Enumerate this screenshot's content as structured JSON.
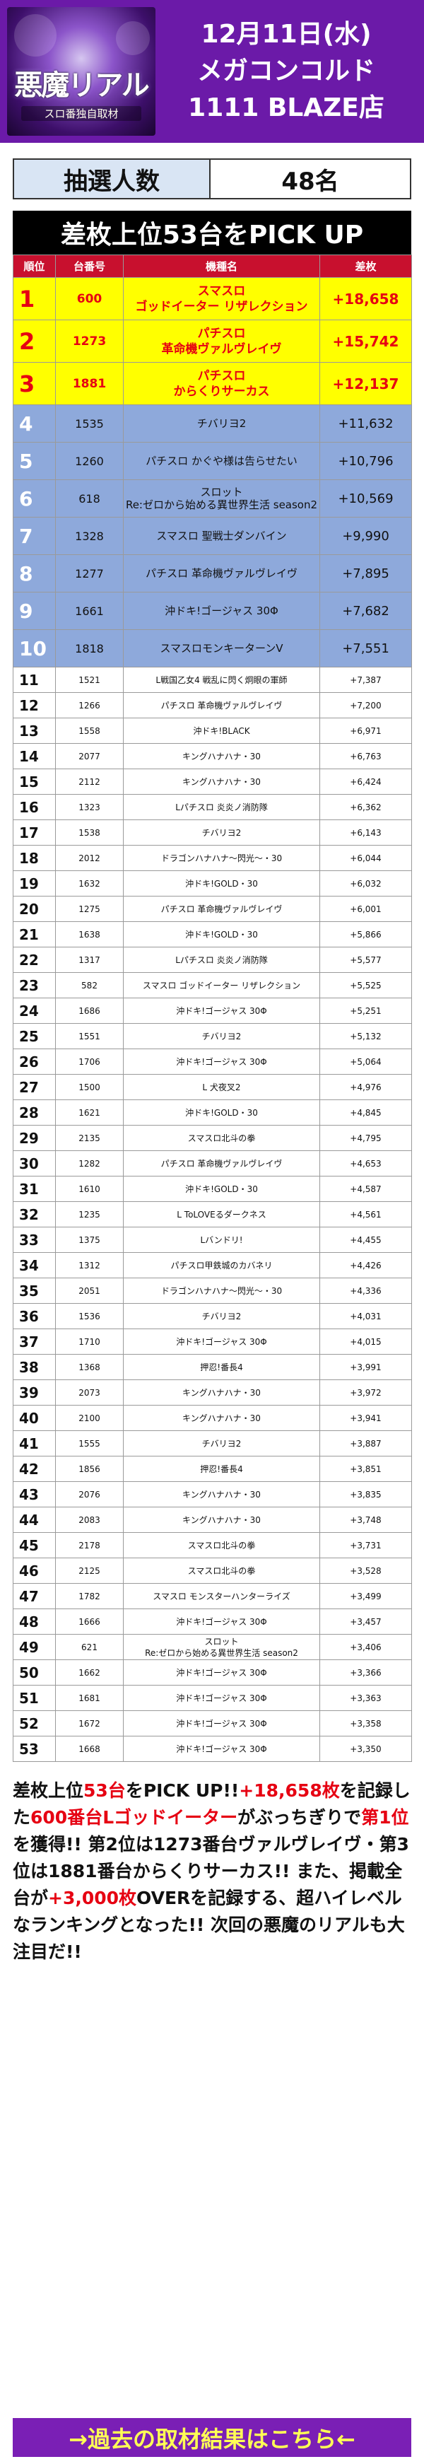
{
  "header": {
    "logo_title": "悪魔リアル",
    "logo_sub": "スロ番独自取材",
    "line1": "12月11日(水)",
    "line2": "メガコンコルド",
    "line3": "1111 BLAZE店"
  },
  "lottery": {
    "label": "抽選人数",
    "value": "48名"
  },
  "pick": {
    "title": "差枚上位53台をPICK UP",
    "headers": [
      "順位",
      "台番号",
      "機種名",
      "差枚"
    ],
    "rows": [
      {
        "rank": "1",
        "num": "600",
        "name": "スマスロ\nゴッドイーター リザレクション",
        "diff": "+18,658"
      },
      {
        "rank": "2",
        "num": "1273",
        "name": "パチスロ\n革命機ヴァルヴレイヴ",
        "diff": "+15,742"
      },
      {
        "rank": "3",
        "num": "1881",
        "name": "パチスロ\nからくりサーカス",
        "diff": "+12,137"
      },
      {
        "rank": "4",
        "num": "1535",
        "name": "チバリヨ2",
        "diff": "+11,632"
      },
      {
        "rank": "5",
        "num": "1260",
        "name": "パチスロ かぐや様は告らせたい",
        "diff": "+10,796"
      },
      {
        "rank": "6",
        "num": "618",
        "name": "スロット\nRe:ゼロから始める異世界生活 season2",
        "diff": "+10,569"
      },
      {
        "rank": "7",
        "num": "1328",
        "name": "スマスロ 聖戦士ダンバイン",
        "diff": "+9,990"
      },
      {
        "rank": "8",
        "num": "1277",
        "name": "パチスロ 革命機ヴァルヴレイヴ",
        "diff": "+7,895"
      },
      {
        "rank": "9",
        "num": "1661",
        "name": "沖ドキ!ゴージャス 30Φ",
        "diff": "+7,682"
      },
      {
        "rank": "10",
        "num": "1818",
        "name": "スマスロモンキーターンV",
        "diff": "+7,551"
      },
      {
        "rank": "11",
        "num": "1521",
        "name": "L戦国乙女4 戦乱に閃く炯眼の軍師",
        "diff": "+7,387"
      },
      {
        "rank": "12",
        "num": "1266",
        "name": "パチスロ 革命機ヴァルヴレイヴ",
        "diff": "+7,200"
      },
      {
        "rank": "13",
        "num": "1558",
        "name": "沖ドキ!BLACK",
        "diff": "+6,971"
      },
      {
        "rank": "14",
        "num": "2077",
        "name": "キングハナハナ・30",
        "diff": "+6,763"
      },
      {
        "rank": "15",
        "num": "2112",
        "name": "キングハナハナ・30",
        "diff": "+6,424"
      },
      {
        "rank": "16",
        "num": "1323",
        "name": "Lパチスロ 炎炎ノ消防隊",
        "diff": "+6,362"
      },
      {
        "rank": "17",
        "num": "1538",
        "name": "チバリヨ2",
        "diff": "+6,143"
      },
      {
        "rank": "18",
        "num": "2012",
        "name": "ドラゴンハナハナ〜閃光〜・30",
        "diff": "+6,044"
      },
      {
        "rank": "19",
        "num": "1632",
        "name": "沖ドキ!GOLD・30",
        "diff": "+6,032"
      },
      {
        "rank": "20",
        "num": "1275",
        "name": "パチスロ 革命機ヴァルヴレイヴ",
        "diff": "+6,001"
      },
      {
        "rank": "21",
        "num": "1638",
        "name": "沖ドキ!GOLD・30",
        "diff": "+5,866"
      },
      {
        "rank": "22",
        "num": "1317",
        "name": "Lパチスロ 炎炎ノ消防隊",
        "diff": "+5,577"
      },
      {
        "rank": "23",
        "num": "582",
        "name": "スマスロ ゴッドイーター リザレクション",
        "diff": "+5,525"
      },
      {
        "rank": "24",
        "num": "1686",
        "name": "沖ドキ!ゴージャス 30Φ",
        "diff": "+5,251"
      },
      {
        "rank": "25",
        "num": "1551",
        "name": "チバリヨ2",
        "diff": "+5,132"
      },
      {
        "rank": "26",
        "num": "1706",
        "name": "沖ドキ!ゴージャス 30Φ",
        "diff": "+5,064"
      },
      {
        "rank": "27",
        "num": "1500",
        "name": "L 犬夜叉2",
        "diff": "+4,976"
      },
      {
        "rank": "28",
        "num": "1621",
        "name": "沖ドキ!GOLD・30",
        "diff": "+4,845"
      },
      {
        "rank": "29",
        "num": "2135",
        "name": "スマスロ北斗の拳",
        "diff": "+4,795"
      },
      {
        "rank": "30",
        "num": "1282",
        "name": "パチスロ 革命機ヴァルヴレイヴ",
        "diff": "+4,653"
      },
      {
        "rank": "31",
        "num": "1610",
        "name": "沖ドキ!GOLD・30",
        "diff": "+4,587"
      },
      {
        "rank": "32",
        "num": "1235",
        "name": "L ToLOVEるダークネス",
        "diff": "+4,561"
      },
      {
        "rank": "33",
        "num": "1375",
        "name": "Lバンドリ!",
        "diff": "+4,455"
      },
      {
        "rank": "34",
        "num": "1312",
        "name": "パチスロ甲鉄城のカバネリ",
        "diff": "+4,426"
      },
      {
        "rank": "35",
        "num": "2051",
        "name": "ドラゴンハナハナ〜閃光〜・30",
        "diff": "+4,336"
      },
      {
        "rank": "36",
        "num": "1536",
        "name": "チバリヨ2",
        "diff": "+4,031"
      },
      {
        "rank": "37",
        "num": "1710",
        "name": "沖ドキ!ゴージャス 30Φ",
        "diff": "+4,015"
      },
      {
        "rank": "38",
        "num": "1368",
        "name": "押忍!番長4",
        "diff": "+3,991"
      },
      {
        "rank": "39",
        "num": "2073",
        "name": "キングハナハナ・30",
        "diff": "+3,972"
      },
      {
        "rank": "40",
        "num": "2100",
        "name": "キングハナハナ・30",
        "diff": "+3,941"
      },
      {
        "rank": "41",
        "num": "1555",
        "name": "チバリヨ2",
        "diff": "+3,887"
      },
      {
        "rank": "42",
        "num": "1856",
        "name": "押忍!番長4",
        "diff": "+3,851"
      },
      {
        "rank": "43",
        "num": "2076",
        "name": "キングハナハナ・30",
        "diff": "+3,835"
      },
      {
        "rank": "44",
        "num": "2083",
        "name": "キングハナハナ・30",
        "diff": "+3,748"
      },
      {
        "rank": "45",
        "num": "2178",
        "name": "スマスロ北斗の拳",
        "diff": "+3,731"
      },
      {
        "rank": "46",
        "num": "2125",
        "name": "スマスロ北斗の拳",
        "diff": "+3,528"
      },
      {
        "rank": "47",
        "num": "1782",
        "name": "スマスロ モンスターハンターライズ",
        "diff": "+3,499"
      },
      {
        "rank": "48",
        "num": "1666",
        "name": "沖ドキ!ゴージャス 30Φ",
        "diff": "+3,457"
      },
      {
        "rank": "49",
        "num": "621",
        "name": "スロット\nRe:ゼロから始める異世界生活 season2",
        "diff": "+3,406"
      },
      {
        "rank": "50",
        "num": "1662",
        "name": "沖ドキ!ゴージャス 30Φ",
        "diff": "+3,366"
      },
      {
        "rank": "51",
        "num": "1681",
        "name": "沖ドキ!ゴージャス 30Φ",
        "diff": "+3,363"
      },
      {
        "rank": "52",
        "num": "1672",
        "name": "沖ドキ!ゴージャス 30Φ",
        "diff": "+3,358"
      },
      {
        "rank": "53",
        "num": "1668",
        "name": "沖ドキ!ゴージャス 30Φ",
        "diff": "+3,350"
      }
    ]
  },
  "summary": [
    {
      "text": "差枚上位",
      "red": false
    },
    {
      "text": "53台",
      "red": true
    },
    {
      "text": "をPICK UP!!",
      "red": false
    },
    {
      "text": "+18,658枚",
      "red": true
    },
    {
      "text": "を記録した",
      "red": false
    },
    {
      "text": "600番台Lゴッドイーター",
      "red": true
    },
    {
      "text": "がぶっちぎりで",
      "red": false
    },
    {
      "text": "第1位",
      "red": true
    },
    {
      "text": "を獲得!! 第2位は1273番台ヴァルヴレイヴ・第3位は1881番台からくりサーカス!! また、掲載全台が",
      "red": false
    },
    {
      "text": "+3,000枚",
      "red": true
    },
    {
      "text": "OVERを記録する、超ハイレベルなランキングとなった!! 次回の悪魔のリアルも大注目だ!!",
      "red": false
    }
  ],
  "footer_link": "→過去の取材結果はこちら←",
  "colors": {
    "header_purple": "#6b1aa8",
    "rank_red": "#e60012",
    "top_yellow": "#ffff00",
    "mid_blue": "#8ea9db",
    "header_red": "#c8102e"
  }
}
